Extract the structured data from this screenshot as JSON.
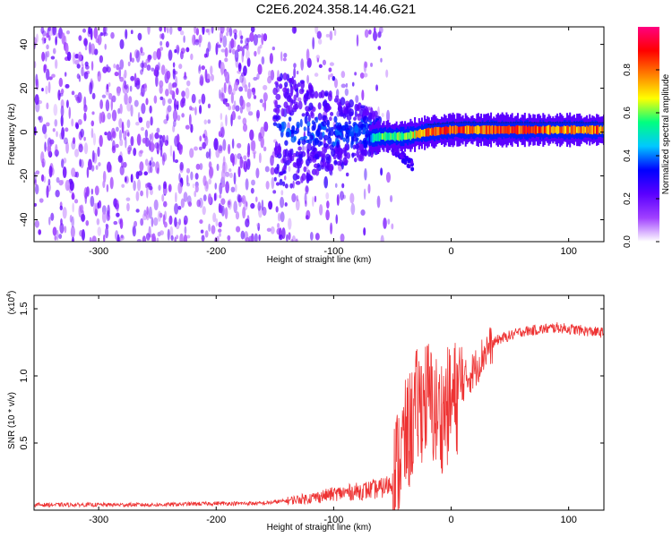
{
  "title": "C2E6.2024.358.14.46.G21",
  "chart_data": [
    {
      "type": "heatmap",
      "xlabel": "Height of straight line (km)",
      "ylabel": "Frequency (Hz)",
      "xlim": [
        -355,
        130
      ],
      "ylim": [
        -50,
        48
      ],
      "xticks": [
        -300,
        -200,
        -100,
        0,
        100
      ],
      "yticks": [
        -40,
        -20,
        0,
        20,
        40
      ],
      "colorbar": {
        "label": "Normalized spectral amplitude",
        "range": [
          0,
          1
        ],
        "ticks": [
          "0.0",
          "0.2",
          "0.4",
          "0.6",
          "0.8"
        ],
        "stops": [
          "#ffffff",
          "#a040ff",
          "#5a00ff",
          "#0000ff",
          "#00c8ff",
          "#00ff80",
          "#ffff00",
          "#ff8000",
          "#ff0000",
          "#ff0080"
        ]
      },
      "ridge": {
        "description": "signal band",
        "x": [
          -70,
          -60,
          -40,
          -20,
          0,
          20,
          50,
          80,
          100,
          130
        ],
        "freq": [
          -3,
          -2,
          -2,
          0,
          1,
          1,
          1,
          1,
          1,
          1
        ],
        "amplitude": [
          0.4,
          0.55,
          0.6,
          0.8,
          0.85,
          0.75,
          0.85,
          0.8,
          0.75,
          0.8
        ]
      }
    },
    {
      "type": "line",
      "xlabel": "Height of straight line (km)",
      "ylabel": "SNR (10 * v/v)",
      "yscale_label_base": "(x10",
      "yscale_label_exp": "4",
      "yscale_label_end": ")",
      "xlim": [
        -355,
        130
      ],
      "ylim": [
        0,
        1.6
      ],
      "xticks": [
        -300,
        -200,
        -100,
        0,
        100
      ],
      "yticks": [
        "0.5",
        "1.0",
        "1.5"
      ],
      "color": "#ee3333",
      "series": [
        {
          "x": [
            -355,
            -300,
            -250,
            -200,
            -160,
            -140,
            -120,
            -100,
            -80,
            -60,
            -50,
            -45,
            -40,
            -35,
            -30,
            -25,
            -20,
            -15,
            -10,
            -5,
            0,
            5,
            10,
            20,
            30,
            40,
            50,
            60,
            70,
            80,
            90,
            100,
            110,
            120,
            130
          ],
          "y": [
            0.04,
            0.04,
            0.04,
            0.05,
            0.05,
            0.07,
            0.09,
            0.12,
            0.14,
            0.16,
            0.2,
            0.35,
            0.5,
            0.6,
            0.75,
            0.8,
            0.85,
            0.75,
            0.7,
            0.75,
            0.8,
            0.85,
            0.95,
            1.05,
            1.2,
            1.27,
            1.3,
            1.33,
            1.34,
            1.35,
            1.36,
            1.35,
            1.34,
            1.33,
            1.32
          ]
        }
      ]
    }
  ]
}
